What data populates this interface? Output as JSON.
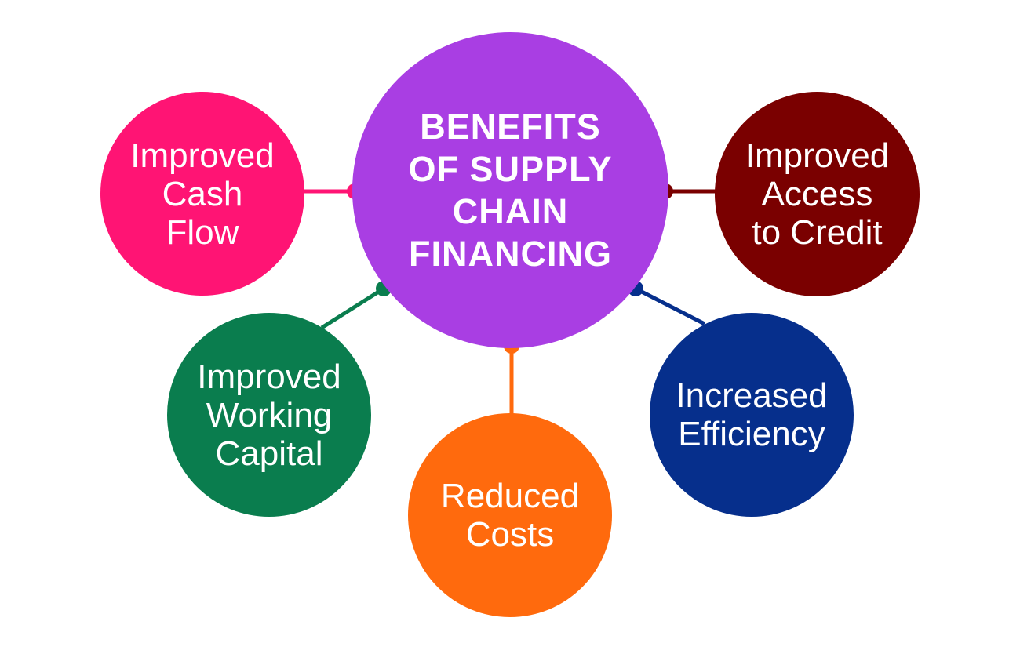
{
  "diagram": {
    "center": {
      "label": "BENEFITS\nOF SUPPLY\nCHAIN\nFINANCING",
      "color": "#a93ee3"
    },
    "nodes": [
      {
        "id": "cash",
        "label": "Improved\nCash\nFlow",
        "color": "#ff1474"
      },
      {
        "id": "credit",
        "label": "Improved\nAccess\nto Credit",
        "color": "#7a0000"
      },
      {
        "id": "working",
        "label": "Improved\nWorking\nCapital",
        "color": "#0a7d4e"
      },
      {
        "id": "costs",
        "label": "Reduced\nCosts",
        "color": "#ff6a0d"
      },
      {
        "id": "efficiency",
        "label": "Increased\nEfficiency",
        "color": "#062f8c"
      }
    ]
  }
}
